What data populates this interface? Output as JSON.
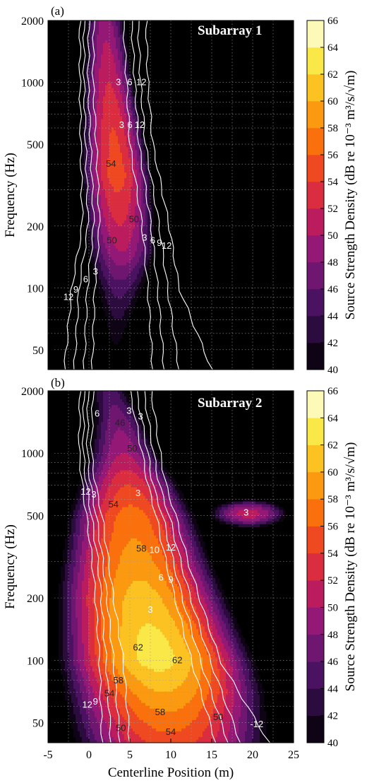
{
  "chart_data": [
    {
      "type": "heatmap",
      "panel_label": "(a)",
      "title": "Subarray 1",
      "xlabel": "",
      "ylabel": "Frequency (Hz)",
      "xlim": [
        -5,
        25
      ],
      "ylim": [
        40,
        2000
      ],
      "yscale": "log",
      "yticks": [
        50,
        100,
        200,
        500,
        1000,
        2000
      ],
      "xticks": [],
      "colorbar": {
        "label": "Source Strength Density (dB re 10⁻³ m³/s/√m)",
        "min": 40,
        "max": 66,
        "step": 2,
        "ticks": [
          40,
          42,
          44,
          46,
          48,
          50,
          52,
          54,
          56,
          58,
          60,
          62,
          64,
          66
        ]
      },
      "ridge": [
        {
          "f": 2000,
          "x": 2.0,
          "peak": 49,
          "width": 1.3
        },
        {
          "f": 1000,
          "x": 2.4,
          "peak": 52,
          "width": 1.5
        },
        {
          "f": 600,
          "x": 2.9,
          "peak": 54,
          "width": 1.7
        },
        {
          "f": 350,
          "x": 3.4,
          "peak": 55,
          "width": 1.9
        },
        {
          "f": 200,
          "x": 3.8,
          "peak": 52,
          "width": 2.1
        },
        {
          "f": 150,
          "x": 4.0,
          "peak": 50,
          "width": 2.2
        },
        {
          "f": 100,
          "x": 3.8,
          "peak": 45,
          "width": 2.1
        },
        {
          "f": 70,
          "x": 3.5,
          "peak": 42,
          "width": 1.6
        },
        {
          "f": 40,
          "x": 3.0,
          "peak": 38,
          "width": 1.2
        }
      ],
      "secondary": [],
      "contour_labels": [
        {
          "x": 3.6,
          "f": 1000,
          "text": "3",
          "color": "white"
        },
        {
          "x": 5.0,
          "f": 1000,
          "text": "6",
          "color": "white"
        },
        {
          "x": 6.4,
          "f": 1000,
          "text": "12",
          "color": "white"
        },
        {
          "x": 4.0,
          "f": 620,
          "text": "3",
          "color": "white"
        },
        {
          "x": 5.0,
          "f": 620,
          "text": "6",
          "color": "white"
        },
        {
          "x": 6.2,
          "f": 620,
          "text": "12",
          "color": "white"
        },
        {
          "x": 2.7,
          "f": 400,
          "text": "54",
          "color": "dark"
        },
        {
          "x": 5.5,
          "f": 215,
          "text": "50",
          "color": "dark"
        },
        {
          "x": 2.8,
          "f": 170,
          "text": "50",
          "color": "dark"
        },
        {
          "x": 6.8,
          "f": 175,
          "text": "3",
          "color": "white"
        },
        {
          "x": 7.8,
          "f": 170,
          "text": "6",
          "color": "white"
        },
        {
          "x": 8.6,
          "f": 165,
          "text": "9",
          "color": "white"
        },
        {
          "x": 9.5,
          "f": 160,
          "text": "12",
          "color": "white"
        },
        {
          "x": 0.8,
          "f": 120,
          "text": "3",
          "color": "white"
        },
        {
          "x": -0.4,
          "f": 110,
          "text": "6",
          "color": "white"
        },
        {
          "x": -1.6,
          "f": 98,
          "text": "9",
          "color": "white"
        },
        {
          "x": -2.5,
          "f": 90,
          "text": "12",
          "color": "white"
        }
      ],
      "white_contours": [
        {
          "level": "3",
          "left": [
            [
              2000,
              0.6
            ],
            [
              1000,
              0.5
            ],
            [
              500,
              0.9
            ],
            [
              200,
              1.3
            ],
            [
              100,
              0.7
            ],
            [
              40,
              0.4
            ]
          ],
          "right": [
            [
              2000,
              4.2
            ],
            [
              1000,
              4.6
            ],
            [
              500,
              5.0
            ],
            [
              200,
              6.5
            ],
            [
              100,
              7.2
            ],
            [
              40,
              7.8
            ]
          ]
        },
        {
          "level": "6",
          "left": [
            [
              2000,
              0.0
            ],
            [
              1000,
              -0.1
            ],
            [
              500,
              0.2
            ],
            [
              200,
              0.6
            ],
            [
              100,
              -0.2
            ],
            [
              40,
              -0.6
            ]
          ],
          "right": [
            [
              2000,
              5.2
            ],
            [
              1000,
              5.6
            ],
            [
              500,
              6.1
            ],
            [
              200,
              7.6
            ],
            [
              100,
              8.4
            ],
            [
              40,
              9.2
            ]
          ]
        },
        {
          "level": "9",
          "left": [
            [
              2000,
              -0.6
            ],
            [
              1000,
              -0.6
            ],
            [
              500,
              -0.4
            ],
            [
              200,
              -0.1
            ],
            [
              100,
              -1.2
            ],
            [
              40,
              -1.8
            ]
          ],
          "right": [
            [
              2000,
              6.0
            ],
            [
              1000,
              6.3
            ],
            [
              500,
              6.9
            ],
            [
              200,
              8.6
            ],
            [
              100,
              9.6
            ],
            [
              40,
              11.0
            ]
          ]
        },
        {
          "level": "12",
          "left": [
            [
              2000,
              -1.1
            ],
            [
              1000,
              -1.1
            ],
            [
              500,
              -1.0
            ],
            [
              200,
              -0.8
            ],
            [
              100,
              -2.1
            ],
            [
              40,
              -3.0
            ]
          ],
          "right": [
            [
              2000,
              7.0
            ],
            [
              1000,
              7.2
            ],
            [
              500,
              7.8
            ],
            [
              200,
              9.8
            ],
            [
              100,
              11.0
            ],
            [
              40,
              15.0
            ]
          ]
        }
      ]
    },
    {
      "type": "heatmap",
      "panel_label": "(b)",
      "title": "Subarray 2",
      "xlabel": "Centerline Position (m)",
      "ylabel": "Frequency (Hz)",
      "xlim": [
        -5,
        25
      ],
      "ylim": [
        40,
        2000
      ],
      "yscale": "log",
      "yticks": [
        50,
        100,
        200,
        500,
        1000,
        2000
      ],
      "xticks": [
        -5,
        0,
        5,
        10,
        15,
        20,
        25
      ],
      "colorbar": {
        "label": "Source Strength Density (dB re 10⁻³ m³/s/√m)",
        "min": 40,
        "max": 66,
        "step": 2,
        "ticks": [
          40,
          42,
          44,
          46,
          48,
          50,
          52,
          54,
          56,
          58,
          60,
          62,
          64,
          66
        ]
      },
      "ridge": [
        {
          "f": 2000,
          "x": 2.5,
          "peak": 45,
          "width": 1.5
        },
        {
          "f": 1500,
          "x": 3.5,
          "peak": 47,
          "width": 1.8
        },
        {
          "f": 1000,
          "x": 4.2,
          "peak": 50,
          "width": 2.2
        },
        {
          "f": 700,
          "x": 4.8,
          "peak": 54,
          "width": 2.8
        },
        {
          "f": 500,
          "x": 5.2,
          "peak": 57,
          "width": 3.2
        },
        {
          "f": 300,
          "x": 5.8,
          "peak": 59,
          "width": 3.6
        },
        {
          "f": 200,
          "x": 6.5,
          "peak": 61,
          "width": 3.9
        },
        {
          "f": 130,
          "x": 7.6,
          "peak": 62.5,
          "width": 4.1
        },
        {
          "f": 100,
          "x": 8.3,
          "peak": 63,
          "width": 4.3
        },
        {
          "f": 70,
          "x": 9.2,
          "peak": 60,
          "width": 4.7
        },
        {
          "f": 40,
          "x": 10.0,
          "peak": 55,
          "width": 5.2
        }
      ],
      "secondary": [
        {
          "x": 19.5,
          "f": 510,
          "peak": 51,
          "sx": 2.4,
          "sy": 0.035
        }
      ],
      "contour_labels": [
        {
          "x": 4.9,
          "f": 1600,
          "text": "3",
          "color": "white"
        },
        {
          "x": 6.3,
          "f": 1500,
          "text": "3",
          "color": "white"
        },
        {
          "x": 3.8,
          "f": 1400,
          "text": "46",
          "color": "dark"
        },
        {
          "x": 1.0,
          "f": 1550,
          "text": "6",
          "color": "white"
        },
        {
          "x": 5.3,
          "f": 1050,
          "text": "50",
          "color": "dark"
        },
        {
          "x": 6.0,
          "f": 640,
          "text": "3",
          "color": "white"
        },
        {
          "x": 3.0,
          "f": 565,
          "text": "54",
          "color": "dark"
        },
        {
          "x": 0.6,
          "f": 630,
          "text": "3",
          "color": "white"
        },
        {
          "x": -0.4,
          "f": 650,
          "text": "12",
          "color": "white"
        },
        {
          "x": 8.0,
          "f": 340,
          "text": "10",
          "color": "white"
        },
        {
          "x": 10.0,
          "f": 350,
          "text": "12",
          "color": "white"
        },
        {
          "x": 6.4,
          "f": 345,
          "text": "58",
          "color": "dark"
        },
        {
          "x": 8.8,
          "f": 250,
          "text": "6",
          "color": "white"
        },
        {
          "x": 10.0,
          "f": 245,
          "text": "9",
          "color": "white"
        },
        {
          "x": 7.5,
          "f": 175,
          "text": "3",
          "color": "white"
        },
        {
          "x": 6.0,
          "f": 115,
          "text": "62",
          "color": "dark"
        },
        {
          "x": 10.8,
          "f": 100,
          "text": "62",
          "color": "dark"
        },
        {
          "x": 3.6,
          "f": 80,
          "text": "58",
          "color": "dark"
        },
        {
          "x": 2.5,
          "f": 69,
          "text": "54",
          "color": "dark"
        },
        {
          "x": 8.7,
          "f": 56,
          "text": "58",
          "color": "dark"
        },
        {
          "x": 0.8,
          "f": 63,
          "text": "9",
          "color": "white"
        },
        {
          "x": -0.2,
          "f": 61,
          "text": "12",
          "color": "white"
        },
        {
          "x": 10.0,
          "f": 45,
          "text": "54",
          "color": "dark"
        },
        {
          "x": 3.9,
          "f": 47,
          "text": "50",
          "color": "dark"
        },
        {
          "x": 15.8,
          "f": 53,
          "text": "50",
          "color": "dark"
        },
        {
          "x": 20.5,
          "f": 49,
          "text": "-12",
          "color": "white"
        },
        {
          "x": 19.2,
          "f": 515,
          "text": "3",
          "color": "white"
        }
      ],
      "white_contours": [
        {
          "level": "3",
          "left": [
            [
              2000,
              0.5
            ],
            [
              1000,
              0.3
            ],
            [
              700,
              0.8
            ],
            [
              500,
              1.6
            ],
            [
              300,
              2.4
            ],
            [
              200,
              3.0
            ],
            [
              100,
              4.2
            ],
            [
              40,
              5.0
            ]
          ],
          "right": [
            [
              2000,
              5.0
            ],
            [
              1000,
              6.5
            ],
            [
              700,
              7.2
            ],
            [
              500,
              8.2
            ],
            [
              300,
              9.4
            ],
            [
              200,
              10.5
            ],
            [
              100,
              12.5
            ],
            [
              40,
              15.5
            ]
          ]
        },
        {
          "level": "6",
          "left": [
            [
              2000,
              -0.1
            ],
            [
              1000,
              -0.2
            ],
            [
              700,
              0.2
            ],
            [
              500,
              0.9
            ],
            [
              300,
              1.7
            ],
            [
              200,
              2.2
            ],
            [
              100,
              3.0
            ],
            [
              40,
              3.8
            ]
          ],
          "right": [
            [
              2000,
              5.8
            ],
            [
              1000,
              7.2
            ],
            [
              700,
              7.8
            ],
            [
              500,
              9.0
            ],
            [
              300,
              10.3
            ],
            [
              200,
              11.4
            ],
            [
              100,
              13.6
            ],
            [
              40,
              17.0
            ]
          ]
        },
        {
          "level": "9",
          "left": [
            [
              2000,
              -0.6
            ],
            [
              1000,
              -0.7
            ],
            [
              700,
              -0.3
            ],
            [
              500,
              0.3
            ],
            [
              300,
              1.1
            ],
            [
              200,
              1.5
            ],
            [
              100,
              2.1
            ],
            [
              40,
              2.7
            ]
          ],
          "right": [
            [
              2000,
              6.7
            ],
            [
              1000,
              7.9
            ],
            [
              700,
              8.6
            ],
            [
              500,
              9.8
            ],
            [
              300,
              11.2
            ],
            [
              200,
              12.4
            ],
            [
              100,
              14.8
            ],
            [
              40,
              18.5
            ]
          ]
        },
        {
          "level": "12",
          "left": [
            [
              2000,
              -1.1
            ],
            [
              1000,
              -1.2
            ],
            [
              700,
              -0.8
            ],
            [
              500,
              -0.3
            ],
            [
              300,
              0.4
            ],
            [
              200,
              0.8
            ],
            [
              100,
              1.3
            ],
            [
              40,
              1.6
            ]
          ],
          "right": [
            [
              2000,
              7.6
            ],
            [
              1000,
              8.7
            ],
            [
              700,
              9.4
            ],
            [
              500,
              10.6
            ],
            [
              300,
              12.1
            ],
            [
              200,
              13.5
            ],
            [
              100,
              16.0
            ],
            [
              40,
              22.0
            ]
          ]
        }
      ]
    }
  ]
}
